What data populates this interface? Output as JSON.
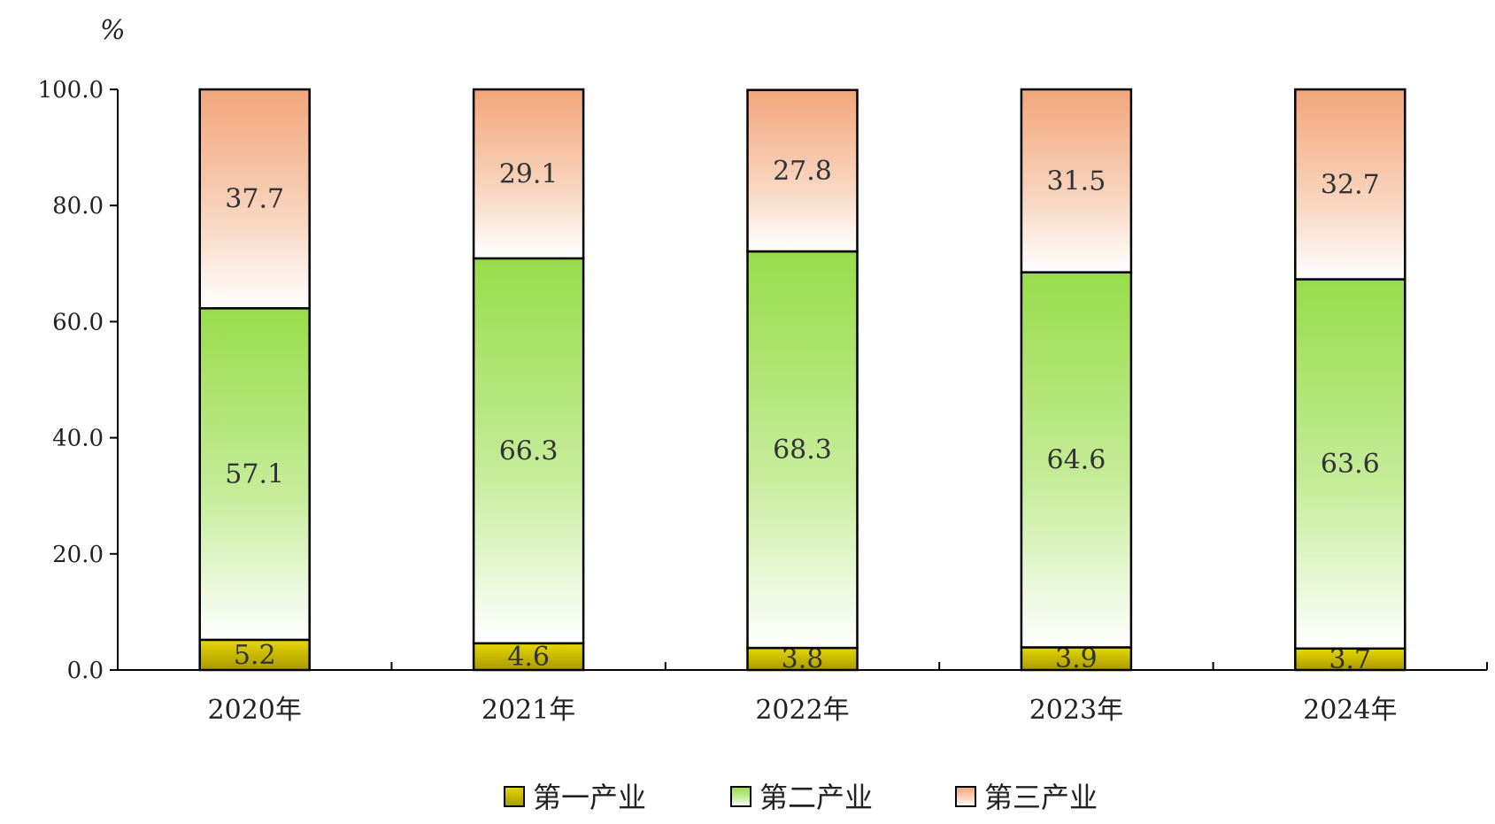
{
  "chart_data": {
    "type": "bar",
    "stacked": true,
    "unit": "%",
    "categories": [
      "2020年",
      "2021年",
      "2022年",
      "2023年",
      "2024年"
    ],
    "series": [
      {
        "name": "第一产业",
        "values": [
          5.2,
          4.6,
          3.8,
          3.9,
          3.7
        ],
        "color": "#e6d800"
      },
      {
        "name": "第二产业",
        "values": [
          57.1,
          66.3,
          68.3,
          64.6,
          63.6
        ],
        "color": "#98dc4a"
      },
      {
        "name": "第三产业",
        "values": [
          37.7,
          29.1,
          27.8,
          31.5,
          32.7
        ],
        "color": "#f2a57a"
      }
    ],
    "ylim": [
      0,
      100
    ],
    "yticks": [
      "0.0",
      "20.0",
      "40.0",
      "60.0",
      "80.0",
      "100.0"
    ],
    "ytick_values": [
      0,
      20,
      40,
      60,
      80,
      100
    ],
    "grid": false,
    "legend_position": "bottom"
  }
}
